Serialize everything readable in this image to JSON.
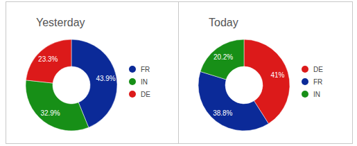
{
  "chart_data": [
    {
      "type": "pie",
      "title": "Yesterday",
      "categories": [
        "FR",
        "IN",
        "DE"
      ],
      "values": [
        43.9,
        32.9,
        23.3
      ],
      "value_labels": [
        "43.9%",
        "32.9%",
        "23.3%"
      ],
      "colors": [
        "#0b2a98",
        "#178f17",
        "#dc1a1a"
      ],
      "data_labels": true,
      "legend": "right"
    },
    {
      "type": "pie",
      "title": "Today",
      "categories": [
        "DE",
        "FR",
        "IN"
      ],
      "values": [
        41,
        38.8,
        20.2
      ],
      "value_labels": [
        "41%",
        "38.8%",
        "20.2%"
      ],
      "colors": [
        "#dc1a1a",
        "#0b2a98",
        "#178f17"
      ],
      "data_labels": true,
      "legend": "right"
    }
  ]
}
